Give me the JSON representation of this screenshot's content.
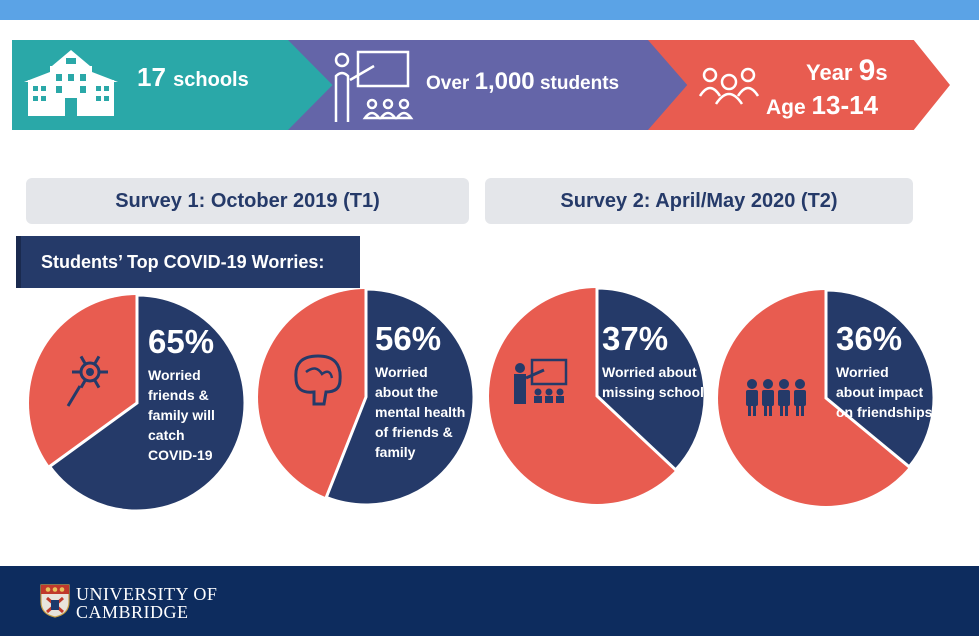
{
  "banner": {
    "schools_number": "17",
    "schools_label": "schools",
    "students_prefix": "Over",
    "students_number": "1,000",
    "students_label": "students",
    "year_label": "Year",
    "year_number": "9",
    "year_suffix": "s",
    "age_label": "Age",
    "age_value": "13-14"
  },
  "surveys": {
    "survey1": "Survey 1: October 2019 (T1)",
    "survey2": "Survey 2: April/May 2020 (T2)"
  },
  "worries_title": "Students’ Top COVID-19 Worries:",
  "footer": {
    "line1": "UNIVERSITY OF",
    "line2": "CAMBRIDGE"
  },
  "colors": {
    "navy": "#253a69",
    "coral": "#e85c50",
    "teal": "#2aa8a8",
    "purple": "#6465a8"
  },
  "chart_data": {
    "type": "pie",
    "series": [
      {
        "percent_label": "65%",
        "value": 65,
        "description": [
          "Worried",
          "friends &",
          "family will",
          "catch",
          "COVID-19"
        ],
        "icon": "virus-icon"
      },
      {
        "percent_label": "56%",
        "value": 56,
        "description": [
          "Worried",
          "about the",
          "mental health",
          "of friends &",
          "family"
        ],
        "icon": "brain-icon"
      },
      {
        "percent_label": "37%",
        "value": 37,
        "description": [
          "Worried about",
          "missing school"
        ],
        "icon": "teacher-icon"
      },
      {
        "percent_label": "36%",
        "value": 36,
        "description": [
          "Worried",
          "about impact",
          "on friendships"
        ],
        "icon": "group-icon"
      }
    ]
  }
}
